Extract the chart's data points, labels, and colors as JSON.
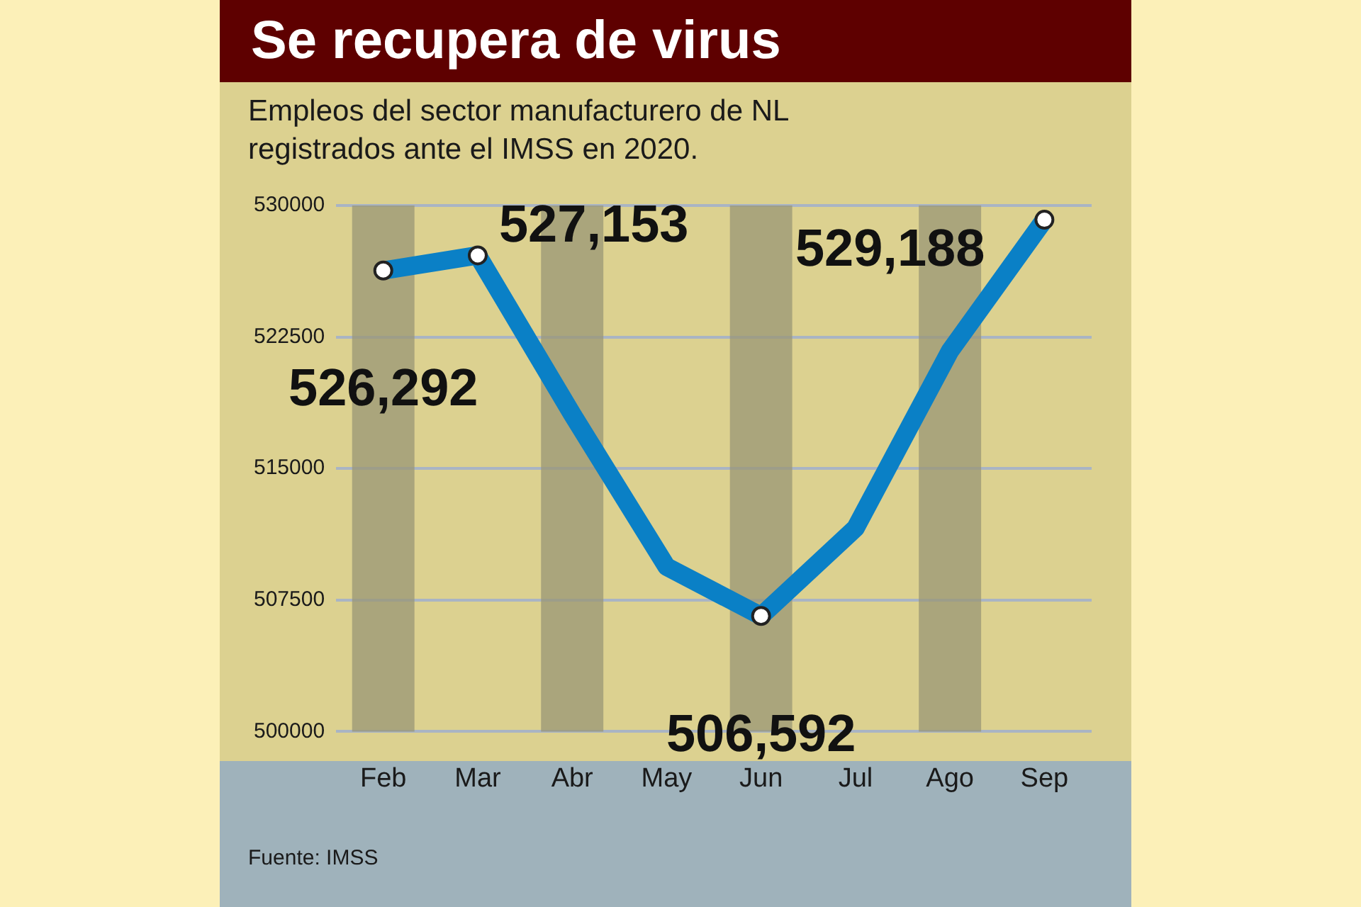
{
  "chart_data": {
    "type": "line",
    "title": "Se recupera de virus",
    "subtitle": "Empleos del sector manufacturero de NL registrados ante el IMSS en 2020.",
    "categories": [
      "Feb",
      "Mar",
      "Abr",
      "May",
      "Jun",
      "Jul",
      "Ago",
      "Sep"
    ],
    "series": [
      {
        "color": "#0a80c6",
        "values": [
          526292,
          527153,
          518100,
          509400,
          506592,
          511600,
          521700,
          529188
        ],
        "value_labels": [
          "526,292",
          "527,153",
          null,
          null,
          "506,592",
          null,
          null,
          "529,188"
        ]
      }
    ],
    "ylim": [
      500000,
      530000
    ],
    "yticks": [
      500000,
      507500,
      515000,
      522500,
      530000
    ],
    "grid": "y",
    "marker": "circle",
    "legend": false,
    "bands": [
      {
        "axis": "x",
        "from": "Feb",
        "to": "Feb",
        "color": "#9a9676"
      },
      {
        "axis": "x",
        "from": "Abr",
        "to": "Abr",
        "color": "#9a9676"
      },
      {
        "axis": "x",
        "from": "Jun",
        "to": "Jun",
        "color": "#9a9676"
      },
      {
        "axis": "x",
        "from": "Ago",
        "to": "Ago",
        "color": "#9a9676"
      }
    ],
    "annotations": [
      "Fuente: IMSS"
    ]
  }
}
